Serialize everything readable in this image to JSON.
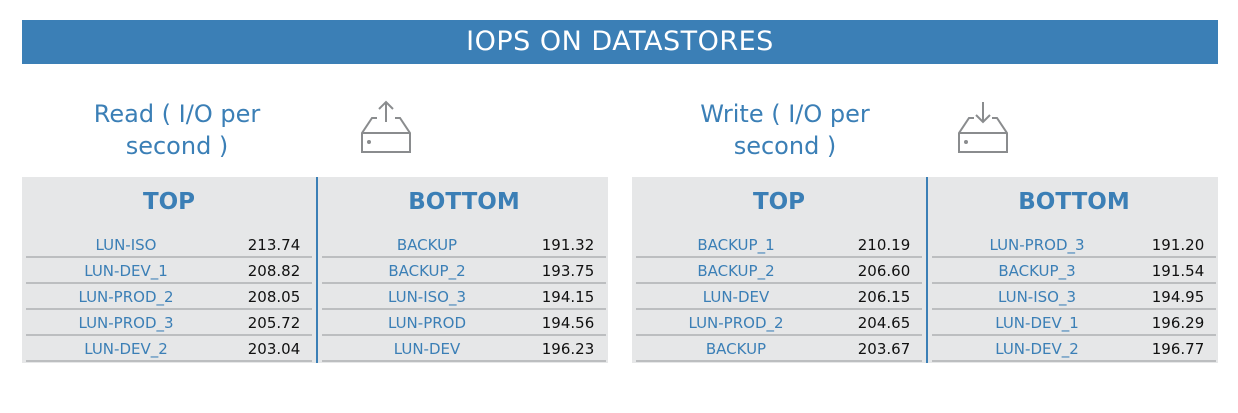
{
  "title": "IOPS ON DATASTORES",
  "sections": [
    {
      "title_line1": "Read ( I/O per",
      "title_line2": "second )",
      "icon": "upload-tray-icon",
      "top": {
        "label": "TOP",
        "rows": [
          [
            "LUN-ISO",
            "213.74"
          ],
          [
            "LUN-DEV_1",
            "208.82"
          ],
          [
            "LUN-PROD_2",
            "208.05"
          ],
          [
            "LUN-PROD_3",
            "205.72"
          ],
          [
            "LUN-DEV_2",
            "203.04"
          ]
        ]
      },
      "bottom": {
        "label": "BOTTOM",
        "rows": [
          [
            "BACKUP",
            "191.32"
          ],
          [
            "BACKUP_2",
            "193.75"
          ],
          [
            "LUN-ISO_3",
            "194.15"
          ],
          [
            "LUN-PROD",
            "194.56"
          ],
          [
            "LUN-DEV",
            "196.23"
          ]
        ]
      }
    },
    {
      "title_line1": "Write ( I/O per",
      "title_line2": "second )",
      "icon": "download-tray-icon",
      "top": {
        "label": "TOP",
        "rows": [
          [
            "BACKUP_1",
            "210.19"
          ],
          [
            "BACKUP_2",
            "206.60"
          ],
          [
            "LUN-DEV",
            "206.15"
          ],
          [
            "LUN-PROD_2",
            "204.65"
          ],
          [
            "BACKUP",
            "203.67"
          ]
        ]
      },
      "bottom": {
        "label": "BOTTOM",
        "rows": [
          [
            "LUN-PROD_3",
            "191.20"
          ],
          [
            "BACKUP_3",
            "191.54"
          ],
          [
            "LUN-ISO_3",
            "194.95"
          ],
          [
            "LUN-DEV_1",
            "196.29"
          ],
          [
            "LUN-DEV_2",
            "196.77"
          ]
        ]
      }
    }
  ],
  "colors": {
    "accent": "#3b7fb6",
    "panel": "#e6e7e8",
    "divider": "#bcbec0"
  }
}
